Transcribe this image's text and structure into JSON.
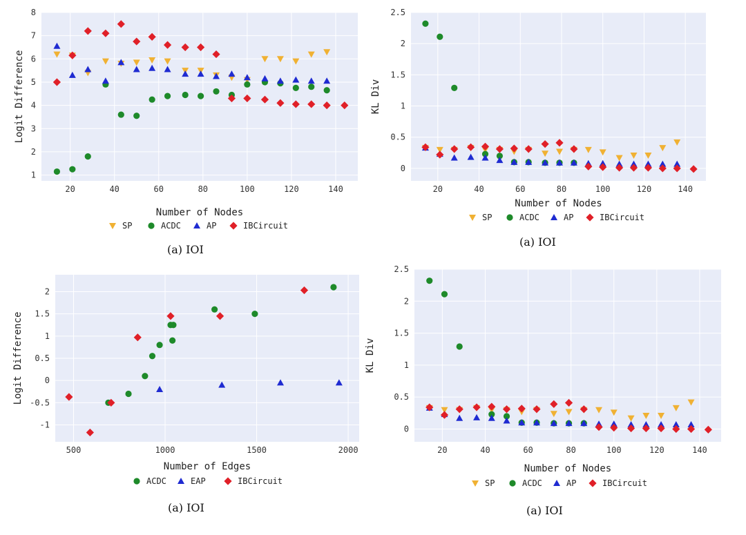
{
  "colors": {
    "SP": "#f0b133",
    "ACDC": "#1e8a2a",
    "AP": "#1f2bd1",
    "EAP": "#1f2bd1",
    "IBCircuit": "#e02028",
    "plot_bg": "#e8ecf8",
    "grid": "#ffffff"
  },
  "chart_data": [
    {
      "type": "scatter",
      "xlabel": "Number of Nodes",
      "ylabel": "Logit Difference",
      "xticks": [
        20,
        40,
        60,
        80,
        100,
        120,
        140
      ],
      "yticks": [
        1,
        2,
        3,
        4,
        5,
        6,
        7,
        8
      ],
      "xlim": [
        7,
        150
      ],
      "ylim": [
        0.75,
        8
      ],
      "caption": "(a) IOI",
      "series": [
        {
          "name": "SP",
          "marker": "tri-down",
          "x": [
            14,
            21,
            28,
            36,
            43,
            50,
            57,
            64,
            72,
            79,
            86,
            93,
            100,
            108,
            115,
            122,
            129,
            136
          ],
          "y": [
            6.2,
            6.15,
            5.4,
            5.9,
            5.8,
            5.85,
            5.95,
            5.9,
            5.5,
            5.5,
            5.3,
            5.2,
            5.1,
            6.0,
            6.0,
            5.9,
            6.2,
            6.3
          ]
        },
        {
          "name": "ACDC",
          "marker": "circle",
          "x": [
            14,
            21,
            28,
            36,
            43,
            50,
            57,
            64,
            72,
            79,
            86,
            93,
            100,
            108,
            115,
            122,
            129,
            136
          ],
          "y": [
            1.15,
            1.25,
            1.8,
            4.9,
            3.6,
            3.55,
            4.25,
            4.4,
            4.45,
            4.4,
            4.6,
            4.45,
            4.9,
            5.0,
            4.95,
            4.75,
            4.8,
            4.65
          ]
        },
        {
          "name": "AP",
          "marker": "tri-up",
          "x": [
            14,
            21,
            28,
            36,
            43,
            50,
            57,
            64,
            72,
            79,
            86,
            93,
            100,
            108,
            115,
            122,
            129,
            136
          ],
          "y": [
            6.55,
            5.3,
            5.55,
            5.05,
            5.85,
            5.55,
            5.6,
            5.55,
            5.35,
            5.35,
            5.25,
            5.35,
            5.2,
            5.15,
            5.05,
            5.1,
            5.05,
            5.05
          ]
        },
        {
          "name": "IBCircuit",
          "marker": "diamond",
          "x": [
            14,
            21,
            28,
            36,
            43,
            50,
            57,
            64,
            72,
            79,
            86,
            93,
            100,
            108,
            115,
            122,
            129,
            136,
            144
          ],
          "y": [
            5.0,
            6.15,
            7.2,
            7.1,
            7.5,
            6.75,
            6.95,
            6.6,
            6.5,
            6.5,
            6.2,
            4.3,
            4.3,
            4.25,
            4.1,
            4.05,
            4.05,
            4.0,
            4.0
          ]
        }
      ]
    },
    {
      "type": "scatter",
      "xlabel": "Number of Nodes",
      "ylabel": "KL Div",
      "xticks": [
        20,
        40,
        60,
        80,
        100,
        120,
        140
      ],
      "yticks": [
        0,
        0.5,
        1,
        1.5,
        2,
        2.5
      ],
      "xlim": [
        7,
        150
      ],
      "ylim": [
        -0.2,
        2.5
      ],
      "caption": "(a) IOI",
      "series": [
        {
          "name": "SP",
          "marker": "tri-down",
          "x": [
            14,
            21,
            28,
            36,
            43,
            50,
            57,
            64,
            72,
            79,
            86,
            93,
            100,
            108,
            115,
            122,
            129,
            136
          ],
          "y": [
            0.33,
            0.3,
            0.3,
            0.33,
            0.3,
            0.3,
            0.27,
            0.3,
            0.24,
            0.27,
            0.3,
            0.3,
            0.26,
            0.17,
            0.21,
            0.21,
            0.33,
            0.42
          ]
        },
        {
          "name": "ACDC",
          "marker": "circle",
          "x": [
            14,
            21,
            28,
            43,
            50,
            57,
            64,
            72,
            79,
            86
          ],
          "y": [
            2.32,
            2.11,
            1.29,
            0.23,
            0.2,
            0.1,
            0.1,
            0.09,
            0.09,
            0.09
          ]
        },
        {
          "name": "AP",
          "marker": "tri-up",
          "x": [
            14,
            21,
            28,
            36,
            43,
            50,
            57,
            64,
            72,
            79,
            86,
            93,
            100,
            108,
            115,
            122,
            129,
            136
          ],
          "y": [
            0.33,
            0.23,
            0.17,
            0.18,
            0.17,
            0.13,
            0.1,
            0.1,
            0.09,
            0.09,
            0.09,
            0.08,
            0.08,
            0.07,
            0.07,
            0.07,
            0.07,
            0.07
          ]
        },
        {
          "name": "IBCircuit",
          "marker": "diamond",
          "x": [
            14,
            21,
            28,
            36,
            43,
            50,
            57,
            64,
            72,
            79,
            86,
            93,
            100,
            108,
            115,
            122,
            129,
            136,
            144
          ],
          "y": [
            0.34,
            0.22,
            0.31,
            0.34,
            0.35,
            0.31,
            0.32,
            0.31,
            0.39,
            0.41,
            0.31,
            0.03,
            0.02,
            0.01,
            0.01,
            0.01,
            0.0,
            0.0,
            -0.01
          ]
        }
      ]
    },
    {
      "type": "scatter",
      "xlabel": "Number of Edges",
      "ylabel": "Logit Difference",
      "xticks": [
        500,
        1000,
        1500,
        2000
      ],
      "xtick_labels": [
        "500",
        "1000",
        "1500",
        "2000"
      ],
      "yticks": [
        -1,
        -0.5,
        0,
        0.5,
        1,
        1.5,
        2
      ],
      "xlim": [
        400,
        2060
      ],
      "ylim": [
        -1.38,
        2.38
      ],
      "caption": "(a) IOI",
      "series": [
        {
          "name": "ACDC",
          "marker": "circle",
          "x": [
            690,
            800,
            890,
            930,
            970,
            1030,
            1040,
            1045,
            1270,
            1490,
            1920
          ],
          "y": [
            -0.5,
            -0.3,
            0.1,
            0.55,
            0.8,
            1.25,
            0.9,
            1.25,
            1.6,
            1.5,
            2.1
          ]
        },
        {
          "name": "EAP",
          "marker": "tri-up",
          "x": [
            970,
            1310,
            1630,
            1950
          ],
          "y": [
            -0.2,
            -0.1,
            -0.05,
            -0.05
          ]
        },
        {
          "name": "IBCircuit",
          "marker": "diamond",
          "x": [
            475,
            590,
            705,
            850,
            1030,
            1300,
            1760
          ],
          "y": [
            -0.37,
            -1.17,
            -0.5,
            0.97,
            1.45,
            1.45,
            2.03
          ]
        }
      ]
    },
    {
      "type": "scatter",
      "xlabel": "Number of Nodes",
      "ylabel": "KL Div",
      "xticks": [
        20,
        40,
        60,
        80,
        100,
        120,
        140
      ],
      "yticks": [
        0,
        0.5,
        1,
        1.5,
        2,
        2.5
      ],
      "xlim": [
        7,
        150
      ],
      "ylim": [
        -0.2,
        2.5
      ],
      "caption": "(a) IOI",
      "series": [
        {
          "name": "SP",
          "marker": "tri-down",
          "x": [
            14,
            21,
            28,
            36,
            43,
            50,
            57,
            64,
            72,
            79,
            86,
            93,
            100,
            108,
            115,
            122,
            129,
            136
          ],
          "y": [
            0.33,
            0.3,
            0.3,
            0.33,
            0.3,
            0.3,
            0.27,
            0.3,
            0.24,
            0.27,
            0.3,
            0.3,
            0.26,
            0.17,
            0.21,
            0.21,
            0.33,
            0.42
          ]
        },
        {
          "name": "ACDC",
          "marker": "circle",
          "x": [
            14,
            21,
            28,
            43,
            50,
            57,
            64,
            72,
            79,
            86
          ],
          "y": [
            2.32,
            2.11,
            1.29,
            0.23,
            0.2,
            0.1,
            0.1,
            0.09,
            0.09,
            0.09
          ]
        },
        {
          "name": "AP",
          "marker": "tri-up",
          "x": [
            14,
            21,
            28,
            36,
            43,
            50,
            57,
            64,
            72,
            79,
            86,
            93,
            100,
            108,
            115,
            122,
            129,
            136
          ],
          "y": [
            0.33,
            0.23,
            0.17,
            0.18,
            0.17,
            0.13,
            0.1,
            0.1,
            0.09,
            0.09,
            0.09,
            0.08,
            0.08,
            0.07,
            0.07,
            0.07,
            0.07,
            0.07
          ]
        },
        {
          "name": "IBCircuit",
          "marker": "diamond",
          "x": [
            14,
            21,
            28,
            36,
            43,
            50,
            57,
            64,
            72,
            79,
            86,
            93,
            100,
            108,
            115,
            122,
            129,
            136,
            144
          ],
          "y": [
            0.34,
            0.22,
            0.31,
            0.34,
            0.35,
            0.31,
            0.32,
            0.31,
            0.39,
            0.41,
            0.31,
            0.03,
            0.02,
            0.01,
            0.01,
            0.01,
            0.0,
            0.0,
            -0.01
          ]
        }
      ]
    }
  ]
}
